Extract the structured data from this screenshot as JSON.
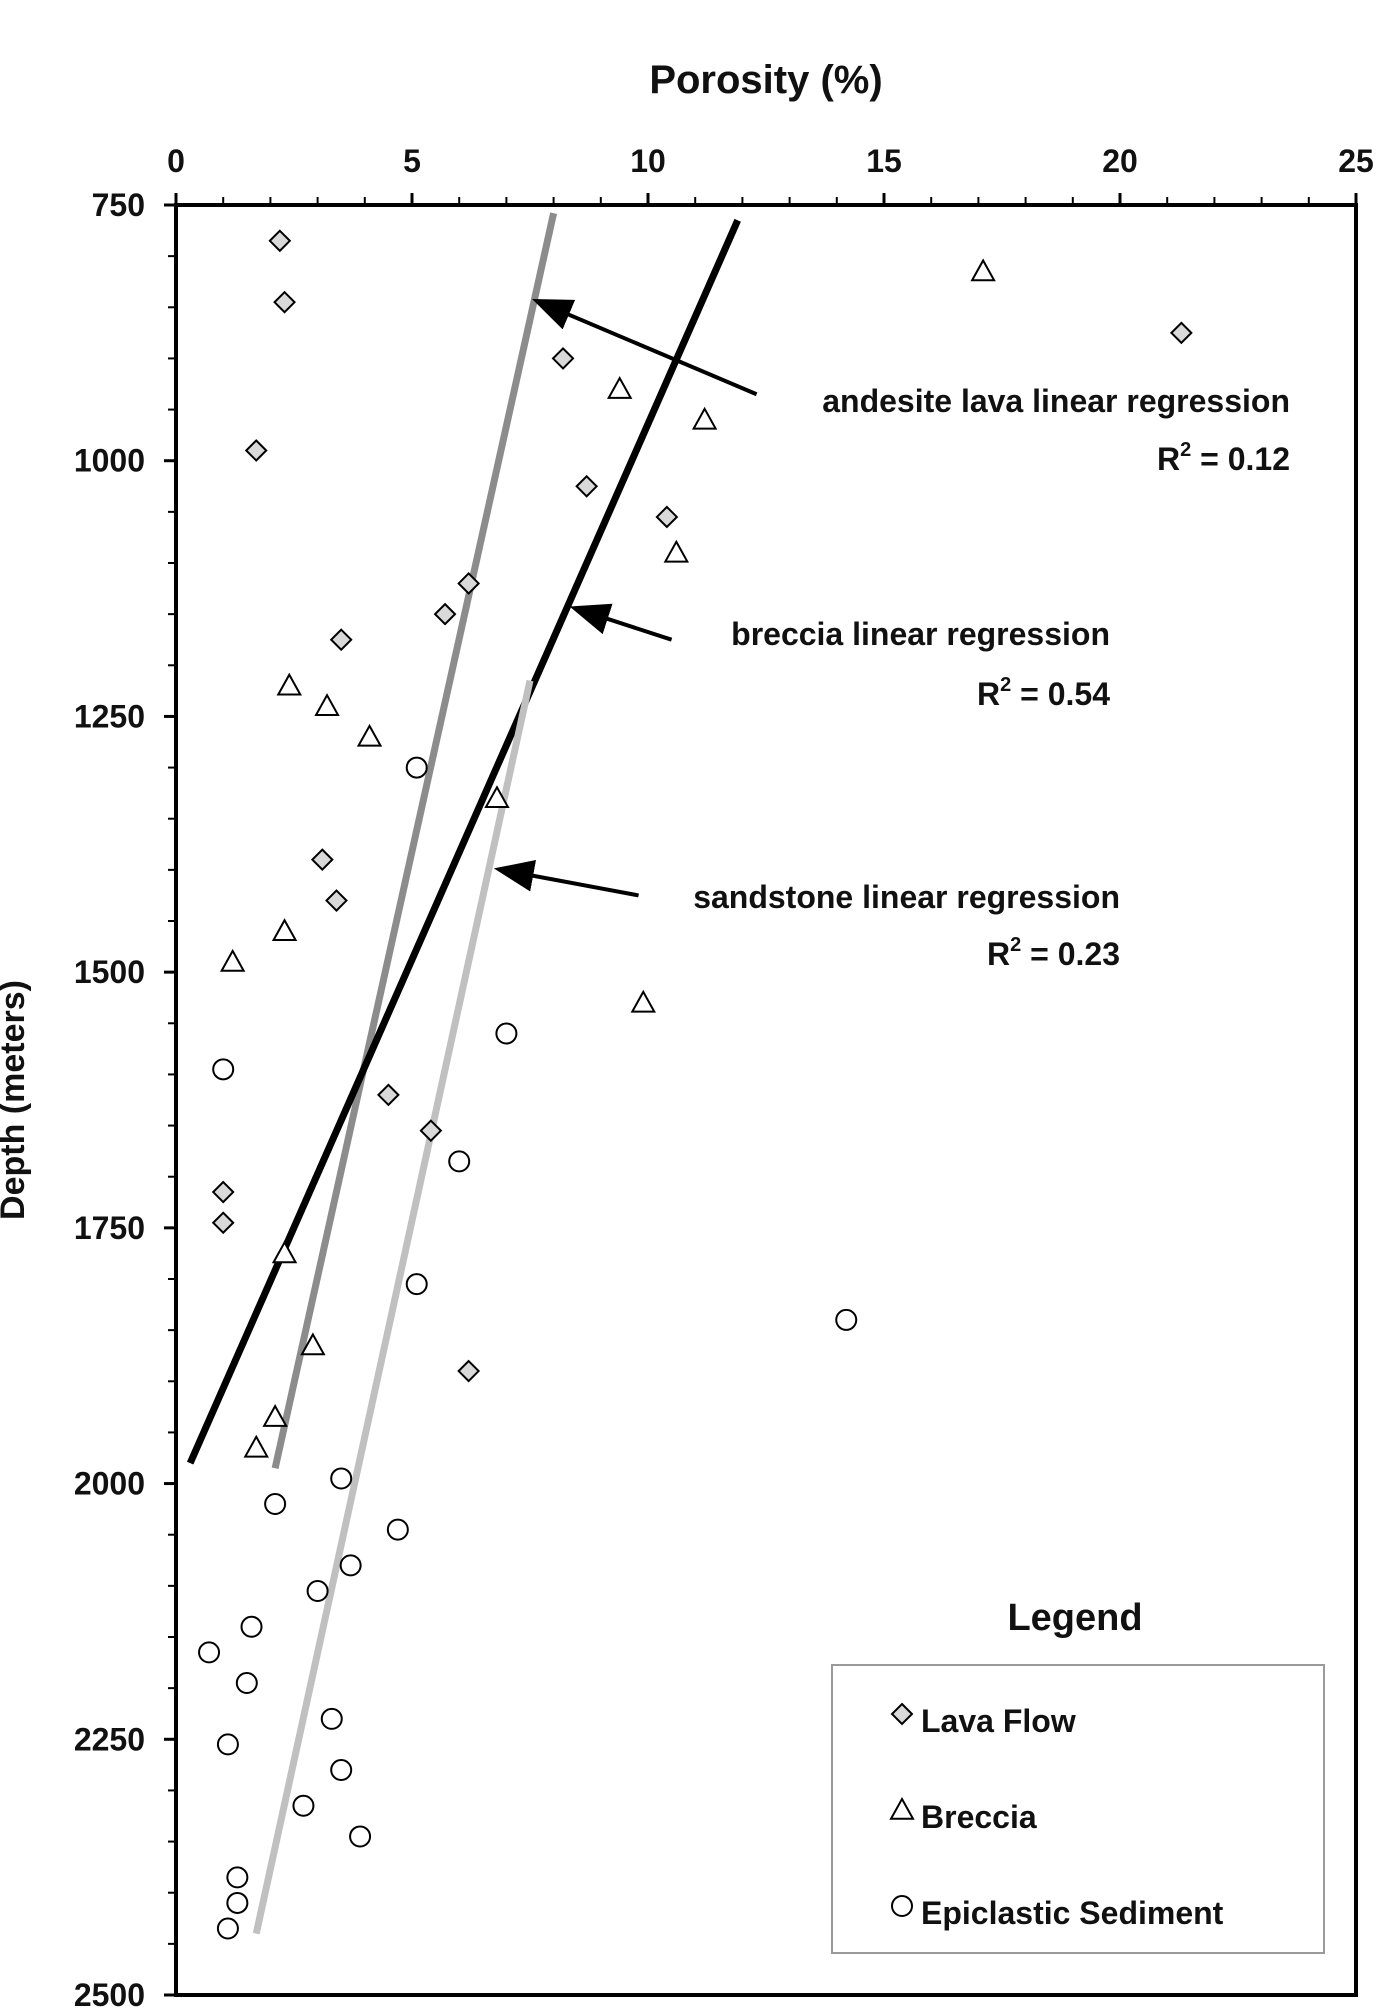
{
  "chart_data": {
    "type": "scatter",
    "xlabel": "Porosity (%)",
    "ylabel": "Depth (meters)",
    "xlim": [
      0,
      25
    ],
    "ylim": [
      750,
      2500
    ],
    "y_inverted": true,
    "x_axis_position": "top",
    "x_ticks": [
      0,
      5,
      10,
      15,
      20,
      25
    ],
    "y_ticks": [
      750,
      1000,
      1250,
      1500,
      1750,
      2000,
      2250,
      2500
    ],
    "x_tick_labels": [
      "0",
      "5",
      "10",
      "15",
      "20",
      "25"
    ],
    "y_tick_labels": [
      "750",
      "1000",
      "1250",
      "1500",
      "1750",
      "2000",
      "2250",
      "2500"
    ],
    "legend_title": "Legend",
    "legend_position": "bottom-right",
    "series": [
      {
        "name": "Lava Flow",
        "marker": "diamond",
        "color": "#d9d9d9",
        "points": [
          [
            2.2,
            785
          ],
          [
            2.3,
            845
          ],
          [
            1.7,
            990
          ],
          [
            8.2,
            900
          ],
          [
            21.3,
            875
          ],
          [
            8.7,
            1025
          ],
          [
            10.4,
            1055
          ],
          [
            6.2,
            1120
          ],
          [
            5.7,
            1150
          ],
          [
            3.5,
            1175
          ],
          [
            3.1,
            1390
          ],
          [
            3.4,
            1430
          ],
          [
            4.5,
            1620
          ],
          [
            5.4,
            1655
          ],
          [
            1.0,
            1715
          ],
          [
            1.0,
            1745
          ],
          [
            6.2,
            1890
          ]
        ]
      },
      {
        "name": "Breccia",
        "marker": "triangle",
        "color": "#ffffff",
        "points": [
          [
            17.1,
            815
          ],
          [
            9.4,
            930
          ],
          [
            11.2,
            960
          ],
          [
            10.6,
            1090
          ],
          [
            2.4,
            1220
          ],
          [
            3.2,
            1240
          ],
          [
            4.1,
            1270
          ],
          [
            6.8,
            1330
          ],
          [
            2.3,
            1460
          ],
          [
            1.2,
            1490
          ],
          [
            9.9,
            1530
          ],
          [
            2.3,
            1775
          ],
          [
            2.9,
            1865
          ],
          [
            2.1,
            1935
          ],
          [
            1.7,
            1965
          ]
        ]
      },
      {
        "name": "Epiclastic Sediment",
        "marker": "circle",
        "color": "#ffffff",
        "points": [
          [
            5.1,
            1300
          ],
          [
            7.0,
            1560
          ],
          [
            1.0,
            1595
          ],
          [
            6.0,
            1685
          ],
          [
            5.1,
            1805
          ],
          [
            14.2,
            1840
          ],
          [
            3.5,
            1995
          ],
          [
            2.1,
            2020
          ],
          [
            4.7,
            2045
          ],
          [
            3.7,
            2080
          ],
          [
            3.0,
            2105
          ],
          [
            1.6,
            2140
          ],
          [
            0.7,
            2165
          ],
          [
            1.5,
            2195
          ],
          [
            3.3,
            2230
          ],
          [
            1.1,
            2255
          ],
          [
            3.5,
            2280
          ],
          [
            2.7,
            2315
          ],
          [
            3.9,
            2345
          ],
          [
            1.3,
            2385
          ],
          [
            1.3,
            2410
          ],
          [
            1.1,
            2435
          ]
        ]
      }
    ],
    "regression_lines": [
      {
        "name": "andesite lava linear regression",
        "r2_label": "R",
        "r2_sup": "2",
        "r2_value": " = 0.12",
        "color": "#8c8c8c",
        "from": [
          8.0,
          758
        ],
        "to": [
          2.1,
          1985
        ],
        "arrow_tip": [
          7.7,
          845
        ],
        "arrow_tail": [
          12.3,
          935
        ]
      },
      {
        "name": "breccia linear regression",
        "r2_label": "R",
        "r2_sup": "2",
        "r2_value": " = 0.54",
        "color": "#000000",
        "from": [
          11.9,
          765
        ],
        "to": [
          0.3,
          1980
        ],
        "arrow_tip": [
          8.5,
          1145
        ],
        "arrow_tail": [
          10.5,
          1175
        ]
      },
      {
        "name": "sandstone linear regression",
        "r2_label": "R",
        "r2_sup": "2",
        "r2_value": " = 0.23",
        "color": "#c0c0c0",
        "from": [
          7.5,
          1215
        ],
        "to": [
          1.7,
          2440
        ],
        "arrow_tip": [
          6.9,
          1400
        ],
        "arrow_tail": [
          9.8,
          1425
        ]
      }
    ]
  }
}
